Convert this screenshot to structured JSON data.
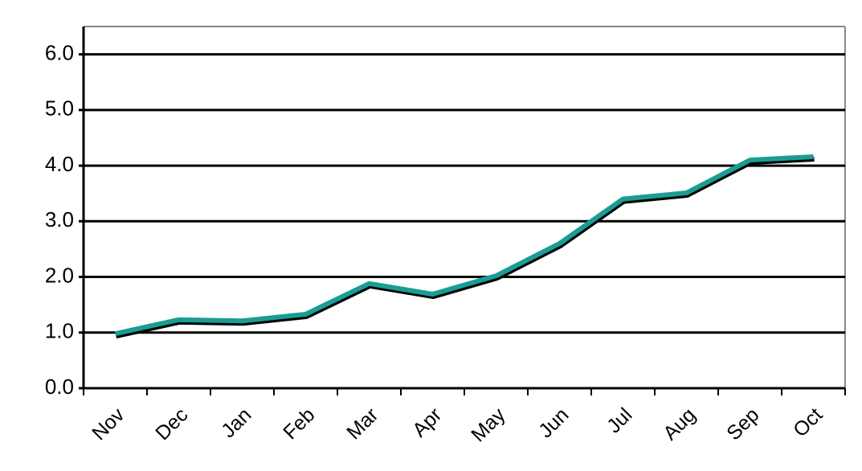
{
  "chart_data": {
    "type": "line",
    "categories": [
      "Nov",
      "Dec",
      "Jan",
      "Feb",
      "Mar",
      "Apr",
      "May",
      "Jun",
      "Jul",
      "Aug",
      "Sep",
      "Oct"
    ],
    "values": [
      0.98,
      1.23,
      1.21,
      1.33,
      1.88,
      1.69,
      2.02,
      2.6,
      3.4,
      3.51,
      4.1,
      4.16
    ],
    "color": "#1a9c94",
    "ylim": [
      0,
      6.5
    ],
    "yticks": [
      {
        "value": 0,
        "label": "0.0"
      },
      {
        "value": 1,
        "label": "1.0"
      },
      {
        "value": 2,
        "label": "2.0"
      },
      {
        "value": 3,
        "label": "3.0"
      },
      {
        "value": 4,
        "label": "4.0"
      },
      {
        "value": 5,
        "label": "5.0"
      },
      {
        "value": 6,
        "label": "6.0"
      }
    ],
    "grid": true
  }
}
